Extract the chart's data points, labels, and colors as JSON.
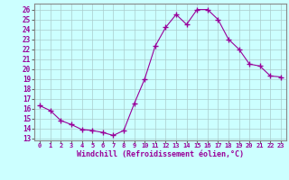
{
  "x": [
    0,
    1,
    2,
    3,
    4,
    5,
    6,
    7,
    8,
    9,
    10,
    11,
    12,
    13,
    14,
    15,
    16,
    17,
    18,
    19,
    20,
    21,
    22,
    23
  ],
  "y": [
    16.3,
    15.8,
    14.8,
    14.4,
    13.9,
    13.8,
    13.6,
    13.3,
    13.8,
    16.5,
    19.0,
    22.3,
    24.2,
    25.5,
    24.5,
    26.0,
    26.0,
    25.0,
    23.0,
    22.0,
    20.5,
    20.3,
    19.3,
    19.2
  ],
  "line_color": "#990099",
  "marker": "+",
  "bg_color": "#ccffff",
  "grid_color": "#aacccc",
  "xlabel": "Windchill (Refroidissement éolien,°C)",
  "xlabel_color": "#990099",
  "ylabel_ticks": [
    13,
    14,
    15,
    16,
    17,
    18,
    19,
    20,
    21,
    22,
    23,
    24,
    25,
    26
  ],
  "xtick_labels": [
    "0",
    "1",
    "2",
    "3",
    "4",
    "5",
    "6",
    "7",
    "8",
    "9",
    "10",
    "11",
    "12",
    "13",
    "14",
    "15",
    "16",
    "17",
    "18",
    "19",
    "20",
    "21",
    "22",
    "23"
  ],
  "xlim": [
    -0.5,
    23.5
  ],
  "ylim": [
    12.8,
    26.6
  ],
  "tick_label_color": "#990099",
  "axis_color": "#666666",
  "border_color": "#888888"
}
